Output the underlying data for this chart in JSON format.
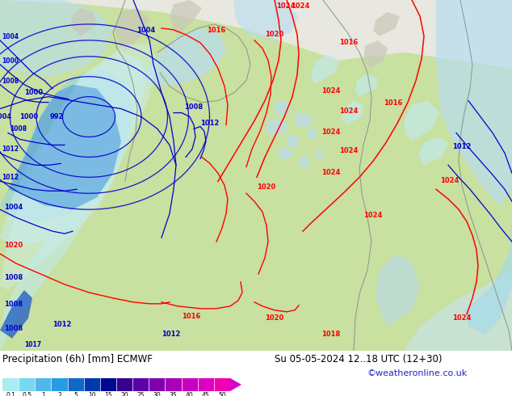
{
  "label_left": "Precipitation (6h) [mm] ECMWF",
  "label_right": "Su 05-05-2024 12..18 UTC (12+30)",
  "label_credit": "©weatheronline.co.uk",
  "colorbar_values": [
    0.1,
    0.5,
    1,
    2,
    5,
    10,
    15,
    20,
    25,
    30,
    35,
    40,
    45,
    50
  ],
  "colorbar_colors": [
    "#a8eef0",
    "#78d8f0",
    "#50b8e8",
    "#289ce0",
    "#1068c8",
    "#0038b0",
    "#000890",
    "#380090",
    "#5c00a8",
    "#8000b0",
    "#a800b8",
    "#c800c0",
    "#e000c0",
    "#f000b0"
  ],
  "bg_white": "#ffffff",
  "land_green": "#c8e0a0",
  "land_light": "#d8ead8",
  "water_blue": "#b8ddf0",
  "precip_light": "#c0ecf8",
  "precip_mid": "#88ccf0",
  "precip_dark": "#3890e0",
  "precip_deep": "#1050c8",
  "map_gray": "#c8c8b8",
  "sea_light": "#e0eff8",
  "bottom_bg": "#f8f8f8",
  "arrow_tip_color": "#d800c8"
}
